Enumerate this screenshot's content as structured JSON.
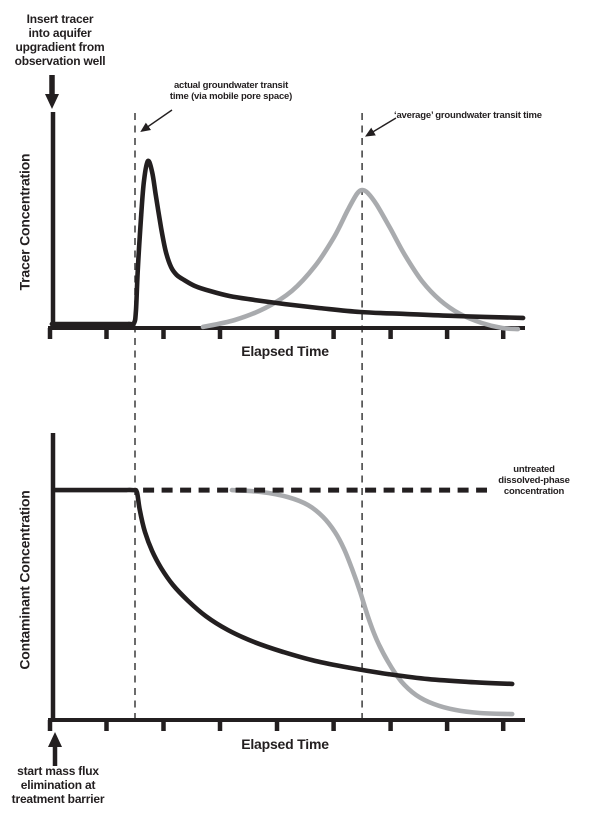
{
  "figure": {
    "colors": {
      "black": "#231f20",
      "gray": "#a9abae",
      "dash": "#474747"
    },
    "notes": {
      "top_left": "Insert tracer\ninto aquifer\nupgradient from\nobservation well",
      "bottom_left": "start mass flux\nelimination at\ntreatment barrier"
    },
    "vlines": [
      {
        "id": "actual-transit-time",
        "x": 17.9
      },
      {
        "id": "average-transit-time",
        "x": 65.7
      }
    ]
  },
  "chart_data": [
    {
      "type": "line",
      "title": "",
      "ylabel": "Tracer Concentration",
      "xlabel": "Elapsed Time",
      "x_range": [
        0,
        100
      ],
      "y_range": [
        0,
        100
      ],
      "grid": false,
      "legend": "none",
      "tick_xs": [
        0,
        11.9,
        23.9,
        35.8,
        47.8,
        59.7,
        71.7,
        83.6,
        95.4
      ],
      "series": [
        {
          "id": "mobile-pore-tracer-curve",
          "name": "tracer breakthrough (actual, via mobile pore space)",
          "color": "black",
          "points": [
            [
              0.4,
              1.9
            ],
            [
              10.5,
              1.9
            ],
            [
              16.4,
              1.9
            ],
            [
              17.7,
              2.4
            ],
            [
              18.1,
              8.6
            ],
            [
              18.5,
              28.6
            ],
            [
              19.2,
              53.8
            ],
            [
              19.8,
              70.5
            ],
            [
              20.6,
              79.5
            ],
            [
              21.5,
              74.3
            ],
            [
              22.3,
              62.9
            ],
            [
              23.4,
              47.6
            ],
            [
              24.4,
              36.2
            ],
            [
              25.5,
              29
            ],
            [
              26.7,
              25.2
            ],
            [
              28.2,
              22.9
            ],
            [
              30.5,
              20
            ],
            [
              33.7,
              17.6
            ],
            [
              37.9,
              15.2
            ],
            [
              43.2,
              13.3
            ],
            [
              49.5,
              11.4
            ],
            [
              56.8,
              9.5
            ],
            [
              65.3,
              7.6
            ],
            [
              74.7,
              6.7
            ],
            [
              85.3,
              5.7
            ],
            [
              99.6,
              4.8
            ]
          ]
        },
        {
          "id": "average-transit-tracer-curve",
          "name": "hypothetical breakthrough at 'average' transit time",
          "color": "gray",
          "points": [
            [
              32.2,
              0.5
            ],
            [
              38.9,
              3.8
            ],
            [
              45.3,
              9.5
            ],
            [
              50.9,
              17.6
            ],
            [
              55.8,
              29.5
            ],
            [
              59.8,
              43.3
            ],
            [
              62.7,
              56.2
            ],
            [
              64.6,
              63.8
            ],
            [
              65.7,
              65.7
            ],
            [
              66.9,
              64.3
            ],
            [
              68.8,
              58.6
            ],
            [
              71.6,
              47.6
            ],
            [
              74.7,
              34.8
            ],
            [
              78.3,
              22.4
            ],
            [
              82.1,
              13.3
            ],
            [
              86.3,
              6.7
            ],
            [
              90.9,
              2.4
            ],
            [
              95.2,
              0
            ],
            [
              98.5,
              -0.5
            ]
          ]
        }
      ],
      "annotations": [
        {
          "text": "actual groundwater transit\ntime (via mobile pore space)",
          "x": 17.9
        },
        {
          "text": "‘average’ groundwater transit time",
          "x": 65.7
        }
      ]
    },
    {
      "type": "line",
      "title": "",
      "ylabel": "Contaminant Concentration",
      "xlabel": "Elapsed Time",
      "x_range": [
        0,
        100
      ],
      "y_range": [
        0,
        100
      ],
      "grid": false,
      "legend": "none",
      "tick_xs": [
        0,
        11.9,
        23.9,
        35.8,
        47.8,
        59.7,
        71.7,
        83.6,
        95.4
      ],
      "series": [
        {
          "id": "actual-contaminant-response-curve",
          "name": "contaminant concentration (actual response after barrier start)",
          "color": "black",
          "points": [
            [
              1.1,
              82.1
            ],
            [
              8.4,
              82.1
            ],
            [
              14.7,
              82.1
            ],
            [
              17.5,
              82.1
            ],
            [
              18.3,
              81.4
            ],
            [
              18.9,
              75
            ],
            [
              20,
              67.1
            ],
            [
              21.5,
              60.4
            ],
            [
              23.4,
              54.3
            ],
            [
              25.9,
              48.2
            ],
            [
              29.1,
              42.5
            ],
            [
              32.8,
              37.1
            ],
            [
              37.5,
              32.1
            ],
            [
              42.9,
              27.9
            ],
            [
              49.1,
              24.3
            ],
            [
              55.8,
              21.1
            ],
            [
              63.2,
              18.6
            ],
            [
              71.2,
              16.4
            ],
            [
              79.6,
              14.6
            ],
            [
              88,
              13.6
            ],
            [
              97.3,
              12.9
            ]
          ]
        },
        {
          "id": "average-expectation-contaminant-curve",
          "name": "expected response if decline began at 'average' transit time",
          "color": "gray",
          "points": [
            [
              38.3,
              82.1
            ],
            [
              44.6,
              81.4
            ],
            [
              50.1,
              79.6
            ],
            [
              54.3,
              76.8
            ],
            [
              57.5,
              72.5
            ],
            [
              60,
              67.1
            ],
            [
              61.9,
              61.1
            ],
            [
              63.6,
              53.9
            ],
            [
              65.3,
              45.7
            ],
            [
              66.9,
              37.1
            ],
            [
              68.8,
              28.6
            ],
            [
              71.2,
              20.7
            ],
            [
              73.9,
              13.9
            ],
            [
              77.1,
              8.9
            ],
            [
              80.8,
              5.7
            ],
            [
              85.3,
              3.6
            ],
            [
              90.5,
              2.5
            ],
            [
              97.3,
              2.1
            ]
          ]
        }
      ],
      "ref_lines": [
        {
          "label": "untreated\ndissolved-phase\nconcentration",
          "y": 82.1,
          "from_x": 19.6,
          "to_x": 92,
          "style": "dashed"
        }
      ]
    }
  ]
}
